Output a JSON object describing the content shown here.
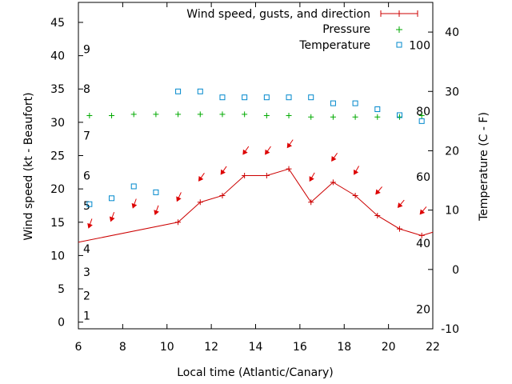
{
  "chart_data": {
    "type": "line",
    "xlabel": "Local time (Atlantic/Canary)",
    "ylabel": "Wind speed (kt - Beaufort)",
    "y2label": "Temperature (C - F)",
    "xlim": [
      6,
      22
    ],
    "ylim": [
      -1,
      48
    ],
    "y2lim": [
      -10,
      45
    ],
    "x_ticks": [
      "6",
      "8",
      "10",
      "12",
      "14",
      "16",
      "18",
      "20",
      "22"
    ],
    "y_ticks": [
      "0",
      "5",
      "10",
      "15",
      "20",
      "25",
      "30",
      "35",
      "40",
      "45"
    ],
    "y2_ticks": [
      "-10",
      "0",
      "10",
      "20",
      "30",
      "40"
    ],
    "beaufort": {
      "labels": [
        "1",
        "2",
        "3",
        "4",
        "5",
        "6",
        "7",
        "8",
        "9"
      ],
      "kt": [
        1,
        4,
        7.5,
        11,
        17.5,
        22,
        28,
        35,
        41
      ]
    },
    "fahrenheit": {
      "labels": [
        "20",
        "40",
        "60",
        "80",
        "100"
      ],
      "y2": [
        -6.7,
        4.4,
        15.6,
        26.7,
        37.8
      ]
    },
    "grid": false,
    "legend": "top-right",
    "series": [
      {
        "name": "Wind speed, gusts, and direction",
        "axis": "y1",
        "color": "#cc0000",
        "x": [
          6,
          10.5,
          11.5,
          12.5,
          13.5,
          14.5,
          15.5,
          16.5,
          17.5,
          18.5,
          19.5,
          20.5,
          21.5,
          22
        ],
        "values": [
          12,
          15,
          18,
          19,
          22,
          22,
          23,
          18,
          21,
          19,
          16,
          14,
          13,
          13.5
        ],
        "markers_x": [
          10.5,
          11.5,
          12.5,
          13.5,
          14.5,
          15.5,
          16.5,
          17.5,
          18.5,
          19.5,
          20.5,
          21.5
        ]
      },
      {
        "name": "Pressure",
        "axis": "y1",
        "color": "#00aa00",
        "x": [
          6.5,
          7.5,
          8.5,
          9.5,
          10.5,
          11.5,
          12.5,
          13.5,
          14.5,
          15.5,
          16.5,
          17.5,
          18.5,
          19.5,
          20.5,
          21.5
        ],
        "values": [
          31.0,
          31.0,
          31.2,
          31.2,
          31.2,
          31.2,
          31.2,
          31.2,
          31.0,
          31.0,
          30.8,
          30.8,
          30.8,
          30.8,
          30.8,
          31.0
        ]
      },
      {
        "name": "Temperature",
        "axis": "y2",
        "color": "#0088cc",
        "x": [
          6.5,
          7.5,
          8.5,
          9.5,
          10.5,
          11.5,
          12.5,
          13.5,
          14.5,
          15.5,
          16.5,
          17.5,
          18.5,
          19.5,
          20.5,
          21.5
        ],
        "values": [
          11,
          12,
          14,
          13,
          30,
          30,
          29,
          29,
          29,
          29,
          29,
          28,
          28,
          27,
          26,
          25
        ]
      }
    ],
    "wind_arrows": {
      "color": "#dd0000",
      "x": [
        6.5,
        7.5,
        8.5,
        9.5,
        10.5,
        11.5,
        12.5,
        13.5,
        14.5,
        15.5,
        16.5,
        17.5,
        18.5,
        19.5,
        20.5,
        21.5
      ],
      "y": [
        14.5,
        15.5,
        17.5,
        16.5,
        18.5,
        21.5,
        22.5,
        25.5,
        25.5,
        26.5,
        21.5,
        24.5,
        22.5,
        19.5,
        17.5,
        16.5
      ],
      "direction_deg": [
        20,
        20,
        20,
        20,
        25,
        35,
        35,
        35,
        35,
        35,
        30,
        35,
        30,
        40,
        40,
        40
      ]
    }
  }
}
